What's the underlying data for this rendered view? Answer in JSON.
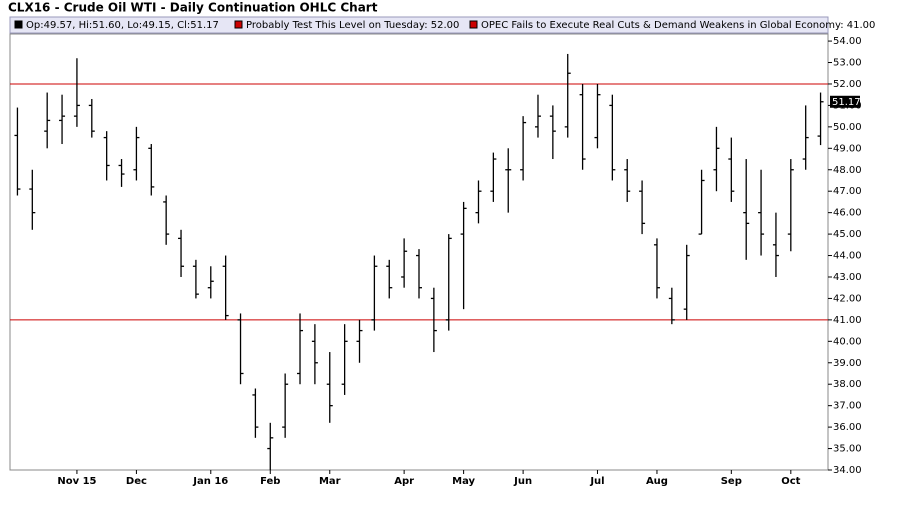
{
  "chart_data": {
    "type": "ohlc",
    "title": "CLX16 - Crude Oil WTI - Daily Continuation OHLC Chart",
    "ohlc_label": "Op:49.57, Hi:51.60, Lo:49.15, Cl:51.17",
    "ohlc_color": "#000000",
    "bar_color": "#000000",
    "hlines": [
      {
        "label": "Probably Test This Level on Tuesday: 52.00",
        "value": 52,
        "color": "#cc0000"
      },
      {
        "label": "OPEC Fails to Execute Real Cuts & Demand Weakens in Global Economy: 41.00",
        "value": 41,
        "color": "#cc0000"
      }
    ],
    "last_label": {
      "value": 51.17,
      "label": "51.17"
    },
    "categories": [
      null,
      null,
      null,
      null,
      "Nov 15",
      null,
      null,
      null,
      "Dec",
      null,
      null,
      null,
      null,
      "Jan 16",
      null,
      null,
      null,
      "Feb",
      null,
      null,
      null,
      "Mar",
      null,
      null,
      null,
      null,
      "Apr",
      null,
      null,
      null,
      "May",
      null,
      null,
      null,
      "Jun",
      null,
      null,
      null,
      null,
      "Jul",
      null,
      null,
      null,
      "Aug",
      null,
      null,
      null,
      null,
      "Sep",
      null,
      null,
      null,
      "Oct",
      null,
      null
    ],
    "open": [
      49.6,
      47.1,
      49.8,
      50.3,
      50.5,
      51.0,
      49.5,
      48.2,
      48.0,
      49.0,
      46.5,
      44.8,
      43.5,
      42.5,
      43.5,
      41.0,
      37.5,
      35.0,
      36.0,
      38.5,
      40.0,
      38.0,
      38.0,
      40.0,
      41.0,
      43.5,
      43.0,
      44.0,
      42.0,
      41.0,
      45.0,
      46.0,
      47.0,
      48.0,
      48.0,
      50.0,
      50.5,
      50.0,
      51.5,
      49.5,
      51.0,
      48.0,
      47.0,
      44.5,
      42.0,
      41.5,
      45.0,
      48.0,
      48.5,
      46.0,
      46.0,
      44.5,
      45.0,
      48.5,
      49.57
    ],
    "high": [
      50.9,
      48.0,
      51.6,
      51.5,
      53.2,
      51.3,
      49.8,
      48.5,
      50.0,
      49.2,
      46.8,
      45.2,
      43.8,
      43.5,
      44.0,
      41.3,
      37.8,
      36.2,
      38.5,
      41.3,
      40.8,
      39.5,
      40.8,
      41.0,
      44.0,
      43.8,
      44.8,
      44.3,
      42.5,
      45.0,
      46.5,
      47.5,
      48.8,
      49.0,
      50.5,
      51.5,
      51.0,
      53.4,
      52.0,
      52.0,
      51.5,
      48.5,
      47.5,
      44.8,
      42.5,
      44.5,
      48.0,
      50.0,
      49.5,
      48.5,
      48.0,
      46.0,
      48.5,
      51.0,
      51.6
    ],
    "low": [
      46.8,
      45.2,
      49.0,
      49.2,
      50.0,
      49.5,
      47.5,
      47.2,
      47.5,
      46.8,
      44.5,
      43.0,
      42.0,
      42.0,
      41.0,
      38.0,
      35.5,
      34.0,
      35.5,
      38.0,
      38.0,
      36.2,
      37.5,
      39.0,
      40.5,
      42.0,
      42.5,
      42.0,
      39.5,
      40.5,
      41.5,
      45.5,
      46.5,
      46.0,
      47.5,
      49.5,
      48.5,
      49.5,
      48.0,
      49.0,
      47.5,
      46.5,
      45.0,
      42.0,
      40.8,
      41.0,
      45.0,
      47.0,
      46.5,
      43.8,
      44.0,
      43.0,
      44.2,
      48.0,
      49.15
    ],
    "close": [
      47.1,
      46.0,
      50.3,
      50.5,
      51.0,
      49.8,
      48.2,
      47.8,
      49.5,
      47.2,
      45.0,
      43.5,
      42.2,
      42.8,
      41.2,
      38.5,
      36.0,
      35.5,
      38.0,
      40.5,
      39.0,
      37.0,
      40.0,
      40.5,
      43.5,
      42.5,
      44.2,
      42.5,
      40.5,
      44.8,
      46.2,
      47.0,
      48.5,
      48.0,
      50.2,
      50.5,
      49.8,
      52.5,
      48.5,
      51.5,
      48.0,
      47.0,
      45.5,
      42.5,
      41.0,
      44.0,
      47.5,
      49.0,
      47.0,
      45.5,
      45.0,
      44.0,
      48.0,
      49.5,
      51.17
    ],
    "ylim": [
      34,
      54.33
    ],
    "yticks": [
      {
        "value": 34,
        "label": "34.00"
      },
      {
        "value": 35,
        "label": "35.00"
      },
      {
        "value": 36,
        "label": "36.00"
      },
      {
        "value": 37,
        "label": "37.00"
      },
      {
        "value": 38,
        "label": "38.00"
      },
      {
        "value": 39,
        "label": "39.00"
      },
      {
        "value": 40,
        "label": "40.00"
      },
      {
        "value": 41,
        "label": "41.00"
      },
      {
        "value": 42,
        "label": "42.00"
      },
      {
        "value": 43,
        "label": "43.00"
      },
      {
        "value": 44,
        "label": "44.00"
      },
      {
        "value": 45,
        "label": "45.00"
      },
      {
        "value": 46,
        "label": "46.00"
      },
      {
        "value": 47,
        "label": "47.00"
      },
      {
        "value": 48,
        "label": "48.00"
      },
      {
        "value": 49,
        "label": "49.00"
      },
      {
        "value": 50,
        "label": "50.00"
      },
      {
        "value": 51,
        "label": "51.00"
      },
      {
        "value": 52,
        "label": "52.00"
      },
      {
        "value": 53,
        "label": "53.00"
      },
      {
        "value": 54,
        "label": "54.00"
      }
    ]
  }
}
